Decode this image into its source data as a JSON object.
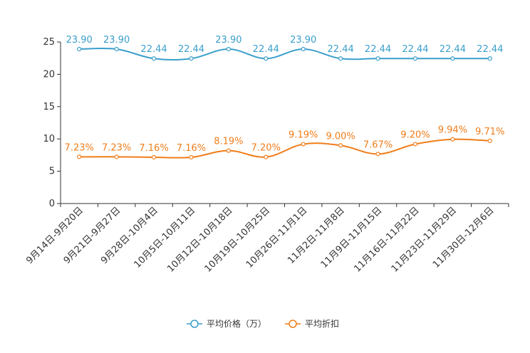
{
  "chart_data": {
    "type": "line",
    "title": "",
    "xlabel": "",
    "ylabel": "",
    "ylim": [
      0,
      25
    ],
    "yticks": [
      0,
      5,
      10,
      15,
      20,
      25
    ],
    "grid": false,
    "legend_position": "bottom-center",
    "categories": [
      "9月14日-9月20日",
      "9月21日-9月27日",
      "9月28日-10月4日",
      "10月5日-10月11日",
      "10月12日-10月18日",
      "10月19日-10月25日",
      "10月26日-11月1日",
      "11月2日-11月8日",
      "11月9日-11月15日",
      "11月16日-11月22日",
      "11月23日-11月29日",
      "11月30日-12月6日"
    ],
    "series": [
      {
        "name": "平均价格（万）",
        "color": "#3a9fcb",
        "values": [
          23.9,
          23.9,
          22.44,
          22.44,
          23.9,
          22.44,
          23.9,
          22.44,
          22.44,
          22.44,
          22.44,
          22.44
        ],
        "labels": [
          "23.90",
          "23.90",
          "22.44",
          "22.44",
          "23.90",
          "22.44",
          "23.90",
          "22.44",
          "22.44",
          "22.44",
          "22.44",
          "22.44"
        ]
      },
      {
        "name": "平均折扣",
        "color": "#f07d1a",
        "values": [
          7.23,
          7.23,
          7.16,
          7.16,
          8.19,
          7.2,
          9.19,
          9.0,
          7.67,
          9.2,
          9.94,
          9.71
        ],
        "labels": [
          "7.23%",
          "7.23%",
          "7.16%",
          "7.16%",
          "8.19%",
          "7.20%",
          "9.19%",
          "9.00%",
          "7.67%",
          "9.20%",
          "9.94%",
          "9.71%"
        ]
      }
    ]
  }
}
